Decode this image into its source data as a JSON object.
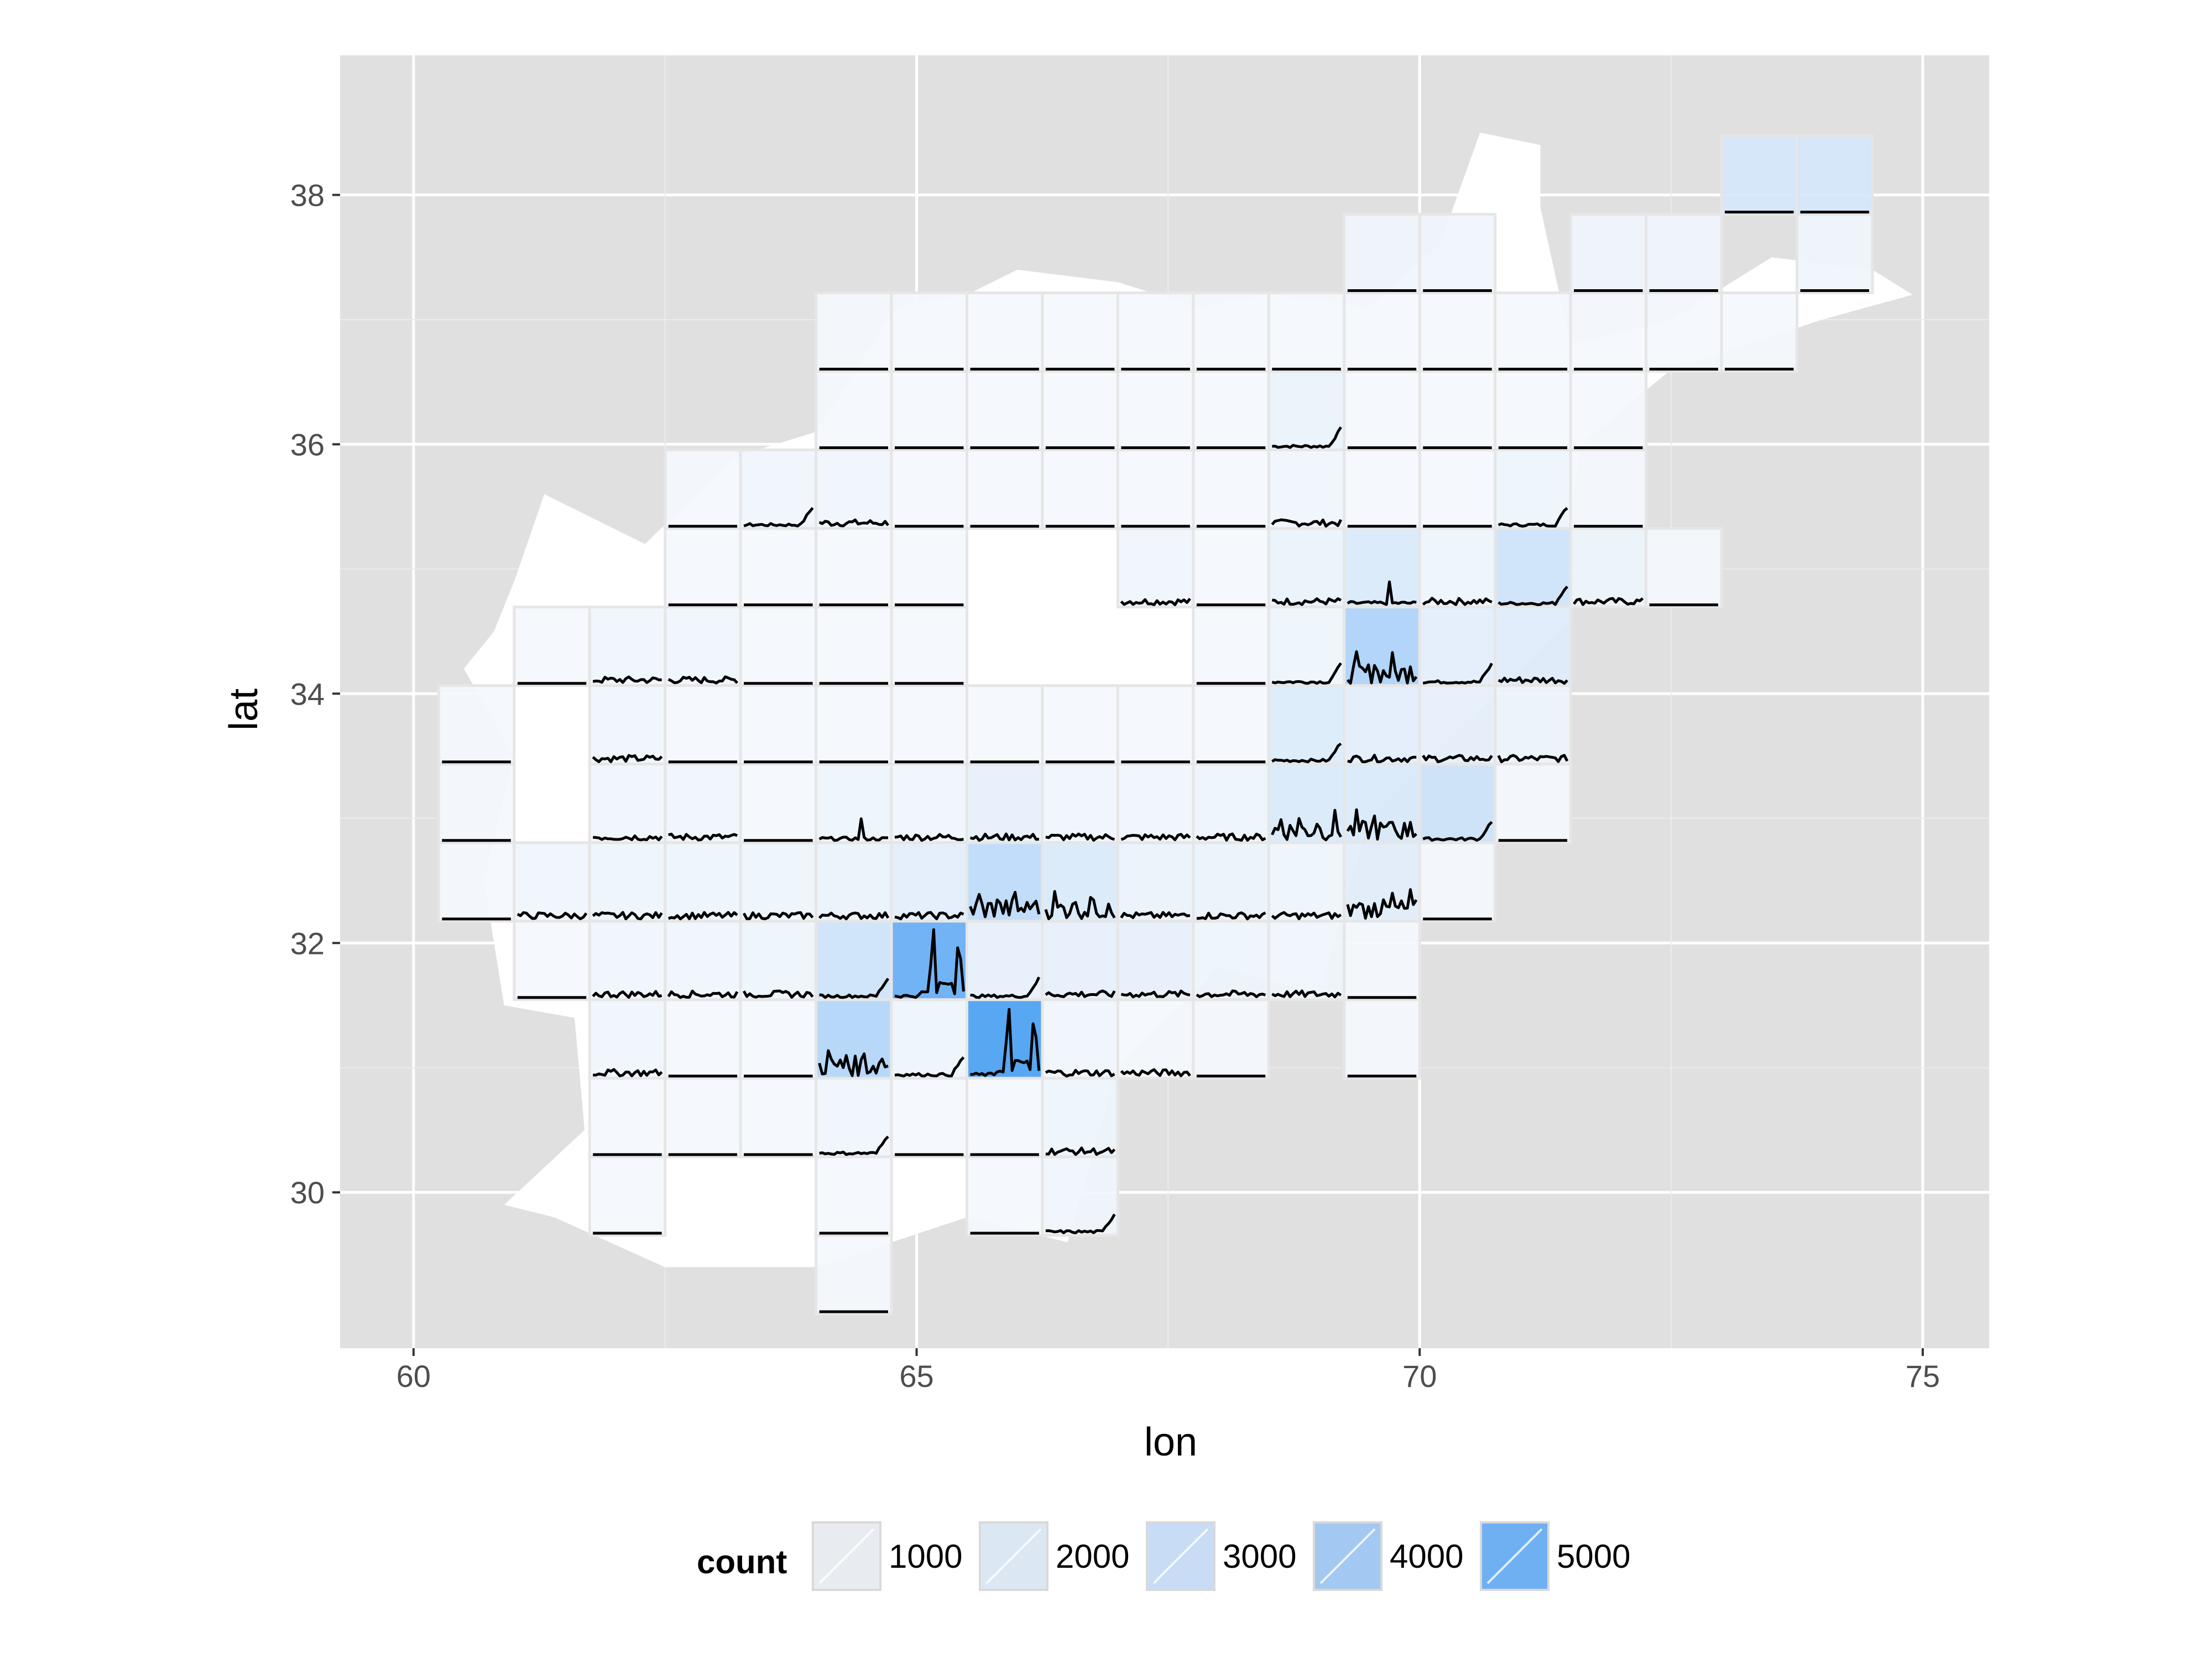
{
  "chart_data": {
    "type": "heatmap",
    "title": "",
    "xlabel": "lon",
    "ylabel": "lat",
    "xlim": [
      59.27,
      75.66
    ],
    "ylim": [
      28.75,
      39.12
    ],
    "x_ticks": [
      60,
      65,
      70,
      75
    ],
    "y_ticks": [
      30,
      32,
      34,
      36,
      38
    ],
    "grid": true,
    "cell_size": [
      0.75,
      0.63
    ],
    "legend": {
      "title": "count",
      "position": "bottom",
      "entries": [
        {
          "label": "1000",
          "value": 1000,
          "color": "#e8ecf1"
        },
        {
          "label": "2000",
          "value": 2000,
          "color": "#dce7f4"
        },
        {
          "label": "3000",
          "value": 3000,
          "color": "#c9dcf5"
        },
        {
          "label": "4000",
          "value": 4000,
          "color": "#a3c8f2"
        },
        {
          "label": "5000",
          "value": 5000,
          "color": "#6fb0f3"
        }
      ]
    },
    "colors": {
      "panel": "#e0e0e0",
      "grid": "#ffffff",
      "map_fill": "#ffffff",
      "tile_border": "#e6e6e6",
      "line": "#000000",
      "low": "#f7f9fc",
      "high": "#4a9ff2"
    },
    "country_outline": [
      [
        61.4,
        29.8
      ],
      [
        62.5,
        29.4
      ],
      [
        64.0,
        29.4
      ],
      [
        65.5,
        29.8
      ],
      [
        66.5,
        29.6
      ],
      [
        67.0,
        31.0
      ],
      [
        68.0,
        31.8
      ],
      [
        69.0,
        31.6
      ],
      [
        69.5,
        33.0
      ],
      [
        70.5,
        33.8
      ],
      [
        71.5,
        34.6
      ],
      [
        71.5,
        35.4
      ],
      [
        71.6,
        36.0
      ],
      [
        72.5,
        36.6
      ],
      [
        74.0,
        37.0
      ],
      [
        74.9,
        37.2
      ],
      [
        74.5,
        37.4
      ],
      [
        73.5,
        37.5
      ],
      [
        72.5,
        37.0
      ],
      [
        71.5,
        36.8
      ],
      [
        71.2,
        37.9
      ],
      [
        71.2,
        38.4
      ],
      [
        70.6,
        38.5
      ],
      [
        70.2,
        37.6
      ],
      [
        69.5,
        37.1
      ],
      [
        68.5,
        37.2
      ],
      [
        67.8,
        37.1
      ],
      [
        67.0,
        37.3
      ],
      [
        66.0,
        37.4
      ],
      [
        65.5,
        37.2
      ],
      [
        64.8,
        37.1
      ],
      [
        64.0,
        36.1
      ],
      [
        63.2,
        35.9
      ],
      [
        62.3,
        35.2
      ],
      [
        61.3,
        35.6
      ],
      [
        61.0,
        34.9
      ],
      [
        60.8,
        34.5
      ],
      [
        60.5,
        34.2
      ],
      [
        61.0,
        33.5
      ],
      [
        60.7,
        32.5
      ],
      [
        60.9,
        31.5
      ],
      [
        61.6,
        31.4
      ],
      [
        61.7,
        30.5
      ],
      [
        60.9,
        29.9
      ]
    ],
    "cells": [
      {
        "lon": 73.375,
        "lat": 38.16,
        "count": 1000,
        "profile": "flat"
      },
      {
        "lon": 74.125,
        "lat": 38.16,
        "count": 1000,
        "profile": "flat"
      },
      {
        "lon": 69.625,
        "lat": 37.53,
        "count": 200,
        "profile": "flat"
      },
      {
        "lon": 70.375,
        "lat": 37.53,
        "count": 200,
        "profile": "flat"
      },
      {
        "lon": 71.875,
        "lat": 37.53,
        "count": 200,
        "profile": "flat"
      },
      {
        "lon": 72.625,
        "lat": 37.53,
        "count": 200,
        "profile": "flat"
      },
      {
        "lon": 74.125,
        "lat": 37.53,
        "count": 200,
        "profile": "flat"
      },
      {
        "lon": 64.375,
        "lat": 36.9,
        "count": 100,
        "profile": "flat"
      },
      {
        "lon": 65.125,
        "lat": 36.9,
        "count": 100,
        "profile": "flat"
      },
      {
        "lon": 65.875,
        "lat": 36.9,
        "count": 100,
        "profile": "flat"
      },
      {
        "lon": 66.625,
        "lat": 36.9,
        "count": 100,
        "profile": "flat"
      },
      {
        "lon": 67.375,
        "lat": 36.9,
        "count": 100,
        "profile": "flat"
      },
      {
        "lon": 68.125,
        "lat": 36.9,
        "count": 100,
        "profile": "flat"
      },
      {
        "lon": 68.875,
        "lat": 36.9,
        "count": 100,
        "profile": "flat"
      },
      {
        "lon": 69.625,
        "lat": 36.9,
        "count": 100,
        "profile": "flat"
      },
      {
        "lon": 70.375,
        "lat": 36.9,
        "count": 100,
        "profile": "flat"
      },
      {
        "lon": 71.125,
        "lat": 36.9,
        "count": 100,
        "profile": "flat"
      },
      {
        "lon": 71.875,
        "lat": 36.9,
        "count": 100,
        "profile": "flat"
      },
      {
        "lon": 72.625,
        "lat": 36.9,
        "count": 100,
        "profile": "flat"
      },
      {
        "lon": 73.375,
        "lat": 36.9,
        "count": 100,
        "profile": "flat"
      },
      {
        "lon": 64.375,
        "lat": 36.27,
        "count": 100,
        "profile": "flat"
      },
      {
        "lon": 65.125,
        "lat": 36.27,
        "count": 100,
        "profile": "flat"
      },
      {
        "lon": 65.875,
        "lat": 36.27,
        "count": 100,
        "profile": "flat"
      },
      {
        "lon": 66.625,
        "lat": 36.27,
        "count": 100,
        "profile": "flat"
      },
      {
        "lon": 67.375,
        "lat": 36.27,
        "count": 100,
        "profile": "flat"
      },
      {
        "lon": 68.125,
        "lat": 36.27,
        "count": 100,
        "profile": "flat"
      },
      {
        "lon": 68.875,
        "lat": 36.27,
        "count": 400,
        "profile": "rise"
      },
      {
        "lon": 69.625,
        "lat": 36.27,
        "count": 100,
        "profile": "flat"
      },
      {
        "lon": 70.375,
        "lat": 36.27,
        "count": 100,
        "profile": "flat"
      },
      {
        "lon": 71.125,
        "lat": 36.27,
        "count": 100,
        "profile": "flat"
      },
      {
        "lon": 71.875,
        "lat": 36.27,
        "count": 100,
        "profile": "flat"
      },
      {
        "lon": 62.875,
        "lat": 35.64,
        "count": 100,
        "profile": "flat"
      },
      {
        "lon": 63.625,
        "lat": 35.64,
        "count": 200,
        "profile": "rise"
      },
      {
        "lon": 64.375,
        "lat": 35.64,
        "count": 200,
        "profile": "noise"
      },
      {
        "lon": 65.125,
        "lat": 35.64,
        "count": 100,
        "profile": "flat"
      },
      {
        "lon": 65.875,
        "lat": 35.64,
        "count": 100,
        "profile": "flat"
      },
      {
        "lon": 66.625,
        "lat": 35.64,
        "count": 100,
        "profile": "flat"
      },
      {
        "lon": 67.375,
        "lat": 35.64,
        "count": 100,
        "profile": "flat"
      },
      {
        "lon": 68.125,
        "lat": 35.64,
        "count": 100,
        "profile": "flat"
      },
      {
        "lon": 68.875,
        "lat": 35.64,
        "count": 200,
        "profile": "noise"
      },
      {
        "lon": 69.625,
        "lat": 35.64,
        "count": 100,
        "profile": "flat"
      },
      {
        "lon": 70.375,
        "lat": 35.64,
        "count": 100,
        "profile": "flat"
      },
      {
        "lon": 71.125,
        "lat": 35.64,
        "count": 300,
        "profile": "rise"
      },
      {
        "lon": 71.875,
        "lat": 35.64,
        "count": 100,
        "profile": "flat"
      },
      {
        "lon": 62.875,
        "lat": 35.01,
        "count": 100,
        "profile": "flat"
      },
      {
        "lon": 63.625,
        "lat": 35.01,
        "count": 100,
        "profile": "flat"
      },
      {
        "lon": 64.375,
        "lat": 35.01,
        "count": 100,
        "profile": "flat"
      },
      {
        "lon": 65.125,
        "lat": 35.01,
        "count": 100,
        "profile": "flat"
      },
      {
        "lon": 67.375,
        "lat": 35.01,
        "count": 200,
        "profile": "noise"
      },
      {
        "lon": 68.125,
        "lat": 35.01,
        "count": 100,
        "profile": "flat"
      },
      {
        "lon": 68.875,
        "lat": 35.01,
        "count": 400,
        "profile": "noise"
      },
      {
        "lon": 69.625,
        "lat": 35.01,
        "count": 900,
        "profile": "peak"
      },
      {
        "lon": 70.375,
        "lat": 35.01,
        "count": 300,
        "profile": "noise"
      },
      {
        "lon": 71.125,
        "lat": 35.01,
        "count": 1200,
        "profile": "rise"
      },
      {
        "lon": 71.875,
        "lat": 35.01,
        "count": 300,
        "profile": "noise"
      },
      {
        "lon": 72.625,
        "lat": 35.01,
        "count": 100,
        "profile": "flat"
      },
      {
        "lon": 61.375,
        "lat": 34.38,
        "count": 100,
        "profile": "flat"
      },
      {
        "lon": 62.125,
        "lat": 34.38,
        "count": 200,
        "profile": "noise"
      },
      {
        "lon": 62.875,
        "lat": 34.38,
        "count": 200,
        "profile": "noise"
      },
      {
        "lon": 63.625,
        "lat": 34.38,
        "count": 100,
        "profile": "flat"
      },
      {
        "lon": 64.375,
        "lat": 34.38,
        "count": 100,
        "profile": "flat"
      },
      {
        "lon": 65.125,
        "lat": 34.38,
        "count": 100,
        "profile": "flat"
      },
      {
        "lon": 68.125,
        "lat": 34.38,
        "count": 100,
        "profile": "flat"
      },
      {
        "lon": 68.875,
        "lat": 34.38,
        "count": 300,
        "profile": "rise"
      },
      {
        "lon": 69.625,
        "lat": 34.38,
        "count": 2200,
        "profile": "multi"
      },
      {
        "lon": 70.375,
        "lat": 34.38,
        "count": 600,
        "profile": "rise"
      },
      {
        "lon": 71.125,
        "lat": 34.38,
        "count": 700,
        "profile": "noise"
      },
      {
        "lon": 60.625,
        "lat": 33.75,
        "count": 100,
        "profile": "flat"
      },
      {
        "lon": 62.125,
        "lat": 33.75,
        "count": 200,
        "profile": "noise"
      },
      {
        "lon": 62.875,
        "lat": 33.75,
        "count": 100,
        "profile": "flat"
      },
      {
        "lon": 63.625,
        "lat": 33.75,
        "count": 100,
        "profile": "flat"
      },
      {
        "lon": 64.375,
        "lat": 33.75,
        "count": 100,
        "profile": "flat"
      },
      {
        "lon": 65.125,
        "lat": 33.75,
        "count": 100,
        "profile": "flat"
      },
      {
        "lon": 65.875,
        "lat": 33.75,
        "count": 100,
        "profile": "flat"
      },
      {
        "lon": 66.625,
        "lat": 33.75,
        "count": 100,
        "profile": "flat"
      },
      {
        "lon": 67.375,
        "lat": 33.75,
        "count": 100,
        "profile": "flat"
      },
      {
        "lon": 68.125,
        "lat": 33.75,
        "count": 100,
        "profile": "flat"
      },
      {
        "lon": 68.875,
        "lat": 33.75,
        "count": 800,
        "profile": "rise"
      },
      {
        "lon": 69.625,
        "lat": 33.75,
        "count": 600,
        "profile": "noise"
      },
      {
        "lon": 70.375,
        "lat": 33.75,
        "count": 500,
        "profile": "noise"
      },
      {
        "lon": 71.125,
        "lat": 33.75,
        "count": 300,
        "profile": "noise"
      },
      {
        "lon": 60.625,
        "lat": 33.12,
        "count": 100,
        "profile": "flat"
      },
      {
        "lon": 62.125,
        "lat": 33.12,
        "count": 200,
        "profile": "noise"
      },
      {
        "lon": 62.875,
        "lat": 33.12,
        "count": 200,
        "profile": "noise"
      },
      {
        "lon": 63.625,
        "lat": 33.12,
        "count": 100,
        "profile": "flat"
      },
      {
        "lon": 64.375,
        "lat": 33.12,
        "count": 300,
        "profile": "peak"
      },
      {
        "lon": 65.125,
        "lat": 33.12,
        "count": 200,
        "profile": "noise"
      },
      {
        "lon": 65.875,
        "lat": 33.12,
        "count": 500,
        "profile": "noise"
      },
      {
        "lon": 66.625,
        "lat": 33.12,
        "count": 200,
        "profile": "noise"
      },
      {
        "lon": 67.375,
        "lat": 33.12,
        "count": 200,
        "profile": "noise"
      },
      {
        "lon": 68.125,
        "lat": 33.12,
        "count": 300,
        "profile": "noise"
      },
      {
        "lon": 68.875,
        "lat": 33.12,
        "count": 900,
        "profile": "multi"
      },
      {
        "lon": 69.625,
        "lat": 33.12,
        "count": 900,
        "profile": "multi"
      },
      {
        "lon": 70.375,
        "lat": 33.12,
        "count": 1200,
        "profile": "rise"
      },
      {
        "lon": 71.125,
        "lat": 33.12,
        "count": 100,
        "profile": "flat"
      },
      {
        "lon": 60.625,
        "lat": 32.49,
        "count": 100,
        "profile": "flat"
      },
      {
        "lon": 61.375,
        "lat": 32.49,
        "count": 200,
        "profile": "noise"
      },
      {
        "lon": 62.125,
        "lat": 32.49,
        "count": 300,
        "profile": "noise"
      },
      {
        "lon": 62.875,
        "lat": 32.49,
        "count": 300,
        "profile": "noise"
      },
      {
        "lon": 63.625,
        "lat": 32.49,
        "count": 300,
        "profile": "noise"
      },
      {
        "lon": 64.375,
        "lat": 32.49,
        "count": 400,
        "profile": "noise"
      },
      {
        "lon": 65.125,
        "lat": 32.49,
        "count": 600,
        "profile": "noise"
      },
      {
        "lon": 65.875,
        "lat": 32.49,
        "count": 1700,
        "profile": "multi"
      },
      {
        "lon": 66.625,
        "lat": 32.49,
        "count": 900,
        "profile": "multi"
      },
      {
        "lon": 67.375,
        "lat": 32.49,
        "count": 400,
        "profile": "noise"
      },
      {
        "lon": 68.125,
        "lat": 32.49,
        "count": 400,
        "profile": "noise"
      },
      {
        "lon": 68.875,
        "lat": 32.49,
        "count": 300,
        "profile": "noise"
      },
      {
        "lon": 69.625,
        "lat": 32.49,
        "count": 600,
        "profile": "multi"
      },
      {
        "lon": 70.375,
        "lat": 32.49,
        "count": 100,
        "profile": "flat"
      },
      {
        "lon": 61.375,
        "lat": 31.86,
        "count": 100,
        "profile": "flat"
      },
      {
        "lon": 62.125,
        "lat": 31.86,
        "count": 200,
        "profile": "noise"
      },
      {
        "lon": 62.875,
        "lat": 31.86,
        "count": 200,
        "profile": "noise"
      },
      {
        "lon": 63.625,
        "lat": 31.86,
        "count": 300,
        "profile": "noise"
      },
      {
        "lon": 64.375,
        "lat": 31.86,
        "count": 1200,
        "profile": "rise"
      },
      {
        "lon": 65.125,
        "lat": 31.86,
        "count": 4200,
        "profile": "bigpeak"
      },
      {
        "lon": 65.875,
        "lat": 31.86,
        "count": 500,
        "profile": "rise"
      },
      {
        "lon": 66.625,
        "lat": 31.86,
        "count": 500,
        "profile": "noise"
      },
      {
        "lon": 67.375,
        "lat": 31.86,
        "count": 500,
        "profile": "noise"
      },
      {
        "lon": 68.125,
        "lat": 31.86,
        "count": 300,
        "profile": "noise"
      },
      {
        "lon": 68.875,
        "lat": 31.86,
        "count": 200,
        "profile": "noise"
      },
      {
        "lon": 69.625,
        "lat": 31.86,
        "count": 100,
        "profile": "flat"
      },
      {
        "lon": 62.125,
        "lat": 31.23,
        "count": 200,
        "profile": "noise"
      },
      {
        "lon": 62.875,
        "lat": 31.23,
        "count": 100,
        "profile": "flat"
      },
      {
        "lon": 63.625,
        "lat": 31.23,
        "count": 100,
        "profile": "flat"
      },
      {
        "lon": 64.375,
        "lat": 31.23,
        "count": 2000,
        "profile": "multi"
      },
      {
        "lon": 65.125,
        "lat": 31.23,
        "count": 300,
        "profile": "rise"
      },
      {
        "lon": 65.875,
        "lat": 31.23,
        "count": 5000,
        "profile": "bigpeak"
      },
      {
        "lon": 66.625,
        "lat": 31.23,
        "count": 200,
        "profile": "noise"
      },
      {
        "lon": 67.375,
        "lat": 31.23,
        "count": 100,
        "profile": "noise"
      },
      {
        "lon": 68.125,
        "lat": 31.23,
        "count": 100,
        "profile": "flat"
      },
      {
        "lon": 69.625,
        "lat": 31.23,
        "count": 100,
        "profile": "flat"
      },
      {
        "lon": 62.125,
        "lat": 30.6,
        "count": 100,
        "profile": "flat"
      },
      {
        "lon": 62.875,
        "lat": 30.6,
        "count": 100,
        "profile": "flat"
      },
      {
        "lon": 63.625,
        "lat": 30.6,
        "count": 100,
        "profile": "flat"
      },
      {
        "lon": 64.375,
        "lat": 30.6,
        "count": 200,
        "profile": "rise"
      },
      {
        "lon": 65.125,
        "lat": 30.6,
        "count": 100,
        "profile": "flat"
      },
      {
        "lon": 65.875,
        "lat": 30.6,
        "count": 100,
        "profile": "flat"
      },
      {
        "lon": 66.625,
        "lat": 30.6,
        "count": 300,
        "profile": "noise"
      },
      {
        "lon": 62.125,
        "lat": 29.97,
        "count": 100,
        "profile": "flat"
      },
      {
        "lon": 64.375,
        "lat": 29.97,
        "count": 100,
        "profile": "flat"
      },
      {
        "lon": 65.875,
        "lat": 29.97,
        "count": 100,
        "profile": "flat"
      },
      {
        "lon": 66.625,
        "lat": 29.97,
        "count": 200,
        "profile": "rise"
      },
      {
        "lon": 64.375,
        "lat": 29.34,
        "count": 100,
        "profile": "flat"
      }
    ]
  }
}
